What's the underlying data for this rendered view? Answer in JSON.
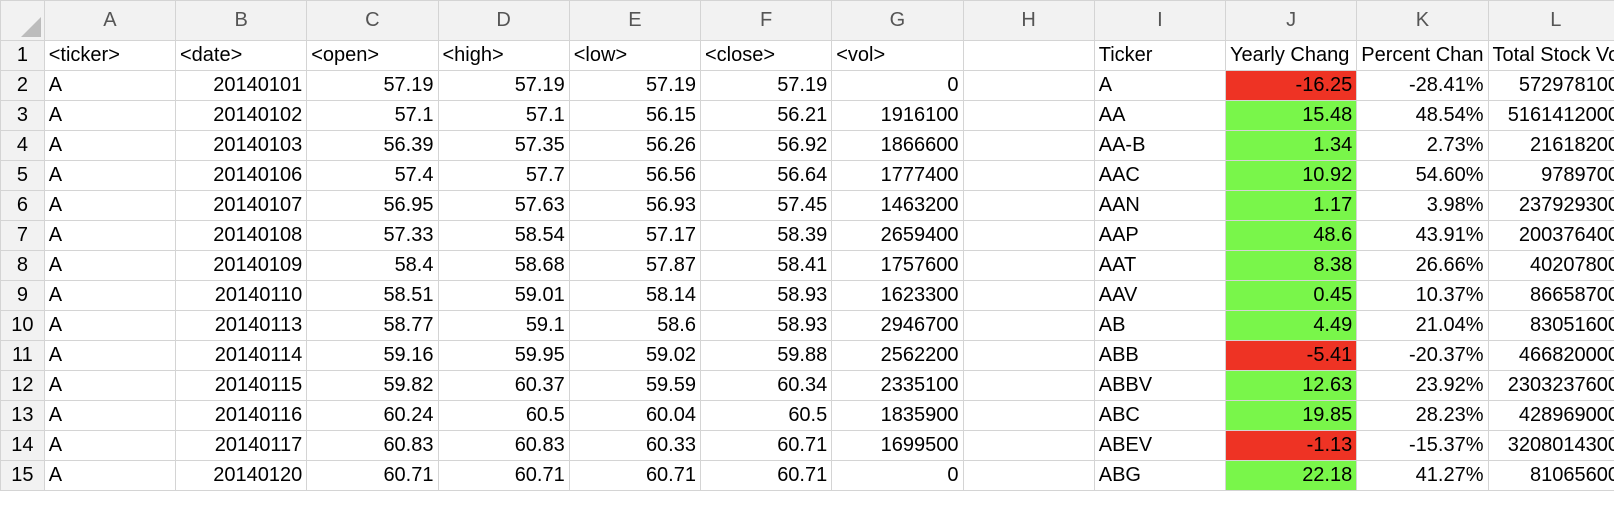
{
  "columns": [
    "A",
    "B",
    "C",
    "D",
    "E",
    "F",
    "G",
    "H",
    "I",
    "J",
    "K",
    "L"
  ],
  "header_row": {
    "row": "1",
    "cells": [
      "<ticker>",
      "<date>",
      "<open>",
      "<high>",
      "<low>",
      "<close>",
      "<vol>",
      "",
      "Ticker",
      "Yearly Chang",
      "Percent Chan",
      "Total Stock Vo"
    ]
  },
  "rows": [
    {
      "row": "2",
      "cells": [
        "A",
        "20140101",
        "57.19",
        "57.19",
        "57.19",
        "57.19",
        "0",
        "",
        "A",
        "-16.25",
        "-28.41%",
        "572978100"
      ],
      "yearly_status": "negative"
    },
    {
      "row": "3",
      "cells": [
        "A",
        "20140102",
        "57.1",
        "57.1",
        "56.15",
        "56.21",
        "1916100",
        "",
        "AA",
        "15.48",
        "48.54%",
        "5161412000"
      ],
      "yearly_status": "positive"
    },
    {
      "row": "4",
      "cells": [
        "A",
        "20140103",
        "56.39",
        "57.35",
        "56.26",
        "56.92",
        "1866600",
        "",
        "AA-B",
        "1.34",
        "2.73%",
        "21618200"
      ],
      "yearly_status": "positive"
    },
    {
      "row": "5",
      "cells": [
        "A",
        "20140106",
        "57.4",
        "57.7",
        "56.56",
        "56.64",
        "1777400",
        "",
        "AAC",
        "10.92",
        "54.60%",
        "9789700"
      ],
      "yearly_status": "positive"
    },
    {
      "row": "6",
      "cells": [
        "A",
        "20140107",
        "56.95",
        "57.63",
        "56.93",
        "57.45",
        "1463200",
        "",
        "AAN",
        "1.17",
        "3.98%",
        "237929300"
      ],
      "yearly_status": "positive"
    },
    {
      "row": "7",
      "cells": [
        "A",
        "20140108",
        "57.33",
        "58.54",
        "57.17",
        "58.39",
        "2659400",
        "",
        "AAP",
        "48.6",
        "43.91%",
        "200376400"
      ],
      "yearly_status": "positive"
    },
    {
      "row": "8",
      "cells": [
        "A",
        "20140109",
        "58.4",
        "58.68",
        "57.87",
        "58.41",
        "1757600",
        "",
        "AAT",
        "8.38",
        "26.66%",
        "40207800"
      ],
      "yearly_status": "positive"
    },
    {
      "row": "9",
      "cells": [
        "A",
        "20140110",
        "58.51",
        "59.01",
        "58.14",
        "58.93",
        "1623300",
        "",
        "AAV",
        "0.45",
        "10.37%",
        "86658700"
      ],
      "yearly_status": "positive"
    },
    {
      "row": "10",
      "cells": [
        "A",
        "20140113",
        "58.77",
        "59.1",
        "58.6",
        "58.93",
        "2946700",
        "",
        "AB",
        "4.49",
        "21.04%",
        "83051600"
      ],
      "yearly_status": "positive"
    },
    {
      "row": "11",
      "cells": [
        "A",
        "20140114",
        "59.16",
        "59.95",
        "59.02",
        "59.88",
        "2562200",
        "",
        "ABB",
        "-5.41",
        "-20.37%",
        "466820000"
      ],
      "yearly_status": "negative"
    },
    {
      "row": "12",
      "cells": [
        "A",
        "20140115",
        "59.82",
        "60.37",
        "59.59",
        "60.34",
        "2335100",
        "",
        "ABBV",
        "12.63",
        "23.92%",
        "2303237600"
      ],
      "yearly_status": "positive"
    },
    {
      "row": "13",
      "cells": [
        "A",
        "20140116",
        "60.24",
        "60.5",
        "60.04",
        "60.5",
        "1835900",
        "",
        "ABC",
        "19.85",
        "28.23%",
        "428969000"
      ],
      "yearly_status": "positive"
    },
    {
      "row": "14",
      "cells": [
        "A",
        "20140117",
        "60.83",
        "60.83",
        "60.33",
        "60.71",
        "1699500",
        "",
        "ABEV",
        "-1.13",
        "-15.37%",
        "3208014300"
      ],
      "yearly_status": "negative"
    },
    {
      "row": "15",
      "cells": [
        "A",
        "20140120",
        "60.71",
        "60.71",
        "60.71",
        "60.71",
        "0",
        "",
        "ABG",
        "22.18",
        "41.27%",
        "81065600"
      ],
      "yearly_status": "positive"
    }
  ],
  "colors": {
    "positive_fill": "#79f64a",
    "negative_fill": "#ee3324",
    "header_bg": "#f2f2f2",
    "gridline": "#d4d4d4"
  }
}
